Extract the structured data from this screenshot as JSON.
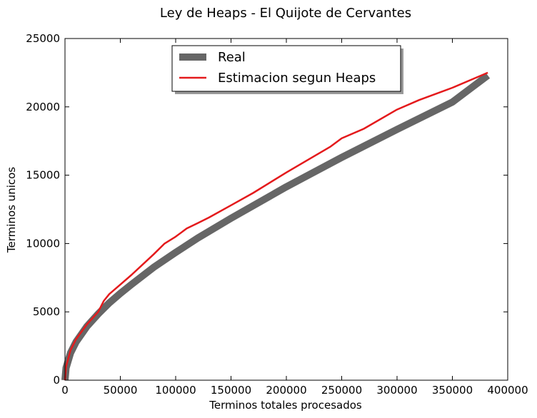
{
  "chart_data": {
    "type": "line",
    "title": "Ley de Heaps - El Quijote de Cervantes",
    "xlabel": "Terminos totales procesados",
    "ylabel": "Terminos unicos",
    "xlim": [
      0,
      400000
    ],
    "ylim": [
      0,
      25000
    ],
    "x_ticks": [
      0,
      50000,
      100000,
      150000,
      200000,
      250000,
      300000,
      350000,
      400000
    ],
    "y_ticks": [
      0,
      5000,
      10000,
      15000,
      20000,
      25000
    ],
    "x_tick_labels": [
      "0",
      "50000",
      "100000",
      "150000",
      "200000",
      "250000",
      "300000",
      "350000",
      "400000"
    ],
    "y_tick_labels": [
      "0",
      "5000",
      "10000",
      "15000",
      "20000",
      "25000"
    ],
    "grid": false,
    "legend_position": "top-center",
    "series": [
      {
        "name": "Real",
        "color": "#666666",
        "x": [
          0,
          1000,
          5000,
          10000,
          20000,
          30000,
          40000,
          50000,
          60000,
          80000,
          100000,
          120000,
          150000,
          200000,
          250000,
          300000,
          350000,
          382000
        ],
        "y": [
          0,
          900,
          2000,
          2800,
          3950,
          4850,
          5650,
          6350,
          7000,
          8250,
          9350,
          10400,
          11850,
          14150,
          16300,
          18350,
          20350,
          22300
        ]
      },
      {
        "name": "Estimacion segun Heaps",
        "color": "#e41a1c",
        "x": [
          0,
          1000,
          5000,
          10000,
          20000,
          30000,
          35000,
          40000,
          50000,
          60000,
          80000,
          90000,
          100000,
          110000,
          120000,
          130000,
          150000,
          170000,
          200000,
          240000,
          250000,
          270000,
          300000,
          320000,
          350000,
          382000
        ],
        "y": [
          0,
          1000,
          2200,
          3000,
          4100,
          5000,
          5800,
          6300,
          7000,
          7700,
          9200,
          10000,
          10500,
          11100,
          11500,
          11900,
          12800,
          13700,
          15200,
          17100,
          17700,
          18400,
          19800,
          20500,
          21400,
          22500
        ]
      }
    ]
  }
}
